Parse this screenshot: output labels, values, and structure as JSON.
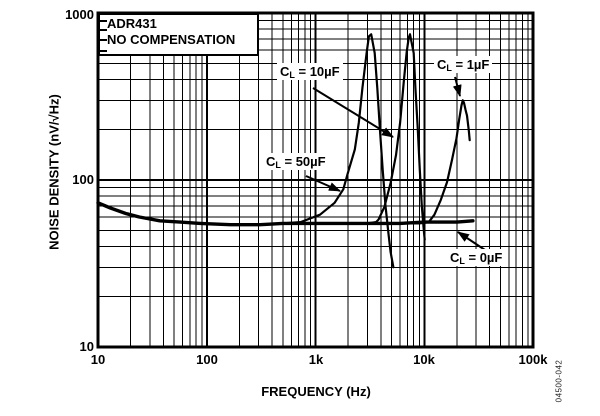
{
  "figure": {
    "title_line1": "ADR431",
    "title_line2": "NO COMPENSATION",
    "watermark": "04500-042"
  },
  "axes": {
    "x": {
      "label": "FREQUENCY (Hz)",
      "scale": "log",
      "tick_labels": [
        "10",
        "100",
        "1k",
        "10k",
        "100k"
      ]
    },
    "y": {
      "label": "NOISE DENSITY (nV/√Hz)",
      "scale": "log",
      "tick_labels": [
        "1000",
        "100",
        "10"
      ]
    }
  },
  "annotations": [
    {
      "c": "C",
      "sub": "L",
      "eq": " = 10µF"
    },
    {
      "c": "C",
      "sub": "L",
      "eq": " = 1µF"
    },
    {
      "c": "C",
      "sub": "L",
      "eq": " = 50µF"
    },
    {
      "c": "C",
      "sub": "L",
      "eq": " = 0µF"
    }
  ],
  "chart_data": {
    "type": "line",
    "title": "ADR431 NO COMPENSATION",
    "xlabel": "FREQUENCY (Hz)",
    "ylabel": "NOISE DENSITY (nV/√Hz)",
    "xscale": "log",
    "yscale": "log",
    "xlim": [
      10,
      100000
    ],
    "ylim": [
      10,
      1000
    ],
    "grid": "log-log, minor decades shown",
    "legend_position": "inline annotations with arrows",
    "series": [
      {
        "name": "CL = 50µF",
        "peak": {
          "frequency_hz": 3250,
          "noise_nv": 745
        },
        "points": [
          [
            10,
            73
          ],
          [
            13,
            68
          ],
          [
            18,
            63
          ],
          [
            24,
            60
          ],
          [
            37,
            57
          ],
          [
            57,
            56
          ],
          [
            87,
            55
          ],
          [
            165,
            54
          ],
          [
            310,
            54
          ],
          [
            500,
            55
          ],
          [
            730,
            56
          ],
          [
            1100,
            62
          ],
          [
            1500,
            73
          ],
          [
            1800,
            88
          ],
          [
            2000,
            112
          ],
          [
            2300,
            152
          ],
          [
            2500,
            220
          ],
          [
            2700,
            355
          ],
          [
            2950,
            575
          ],
          [
            3100,
            725
          ],
          [
            3250,
            745
          ],
          [
            3500,
            575
          ],
          [
            3700,
            355
          ],
          [
            3900,
            206
          ],
          [
            4150,
            115
          ],
          [
            4400,
            70
          ],
          [
            4700,
            47
          ],
          [
            4900,
            37
          ],
          [
            5200,
            30
          ]
        ]
      },
      {
        "name": "CL = 10µF",
        "peak": {
          "frequency_hz": 7400,
          "noise_nv": 745
        },
        "points": [
          [
            10,
            73
          ],
          [
            13,
            68
          ],
          [
            18,
            63
          ],
          [
            24,
            60
          ],
          [
            37,
            57
          ],
          [
            57,
            56
          ],
          [
            87,
            55
          ],
          [
            165,
            54
          ],
          [
            310,
            54
          ],
          [
            500,
            55
          ],
          [
            1000,
            55
          ],
          [
            2000,
            55
          ],
          [
            3000,
            55
          ],
          [
            3600,
            56
          ],
          [
            3800,
            58
          ],
          [
            4300,
            69
          ],
          [
            4900,
            96
          ],
          [
            5500,
            141
          ],
          [
            6000,
            220
          ],
          [
            6500,
            395
          ],
          [
            6900,
            584
          ],
          [
            7200,
            710
          ],
          [
            7400,
            745
          ],
          [
            8000,
            575
          ],
          [
            8300,
            355
          ],
          [
            8700,
            206
          ],
          [
            9100,
            115
          ],
          [
            9500,
            70
          ],
          [
            9900,
            50
          ],
          [
            10100,
            44
          ]
        ]
      },
      {
        "name": "CL = 1µF",
        "peak": {
          "frequency_hz": 22600,
          "noise_nv": 300
        },
        "points": [
          [
            10,
            73
          ],
          [
            13,
            68
          ],
          [
            18,
            63
          ],
          [
            24,
            60
          ],
          [
            37,
            57
          ],
          [
            57,
            56
          ],
          [
            87,
            55
          ],
          [
            165,
            54
          ],
          [
            310,
            54
          ],
          [
            500,
            55
          ],
          [
            1000,
            55
          ],
          [
            3000,
            55
          ],
          [
            6000,
            55
          ],
          [
            9000,
            55
          ],
          [
            11000,
            56
          ],
          [
            12400,
            62
          ],
          [
            14200,
            76
          ],
          [
            16200,
            97
          ],
          [
            18000,
            132
          ],
          [
            19800,
            178
          ],
          [
            21000,
            233
          ],
          [
            22000,
            280
          ],
          [
            22600,
            300
          ],
          [
            23200,
            290
          ],
          [
            24000,
            262
          ],
          [
            24700,
            243
          ],
          [
            25700,
            198
          ],
          [
            26200,
            173
          ]
        ]
      },
      {
        "name": "CL = 0µF",
        "peak": null,
        "points": [
          [
            10,
            73
          ],
          [
            13,
            68
          ],
          [
            18,
            63
          ],
          [
            24,
            60
          ],
          [
            37,
            57
          ],
          [
            57,
            56
          ],
          [
            87,
            55
          ],
          [
            165,
            54
          ],
          [
            310,
            54
          ],
          [
            500,
            55
          ],
          [
            1000,
            55
          ],
          [
            3000,
            55
          ],
          [
            6000,
            55
          ],
          [
            10000,
            56
          ],
          [
            15000,
            56
          ],
          [
            20000,
            56
          ],
          [
            28000,
            57
          ]
        ]
      }
    ]
  }
}
